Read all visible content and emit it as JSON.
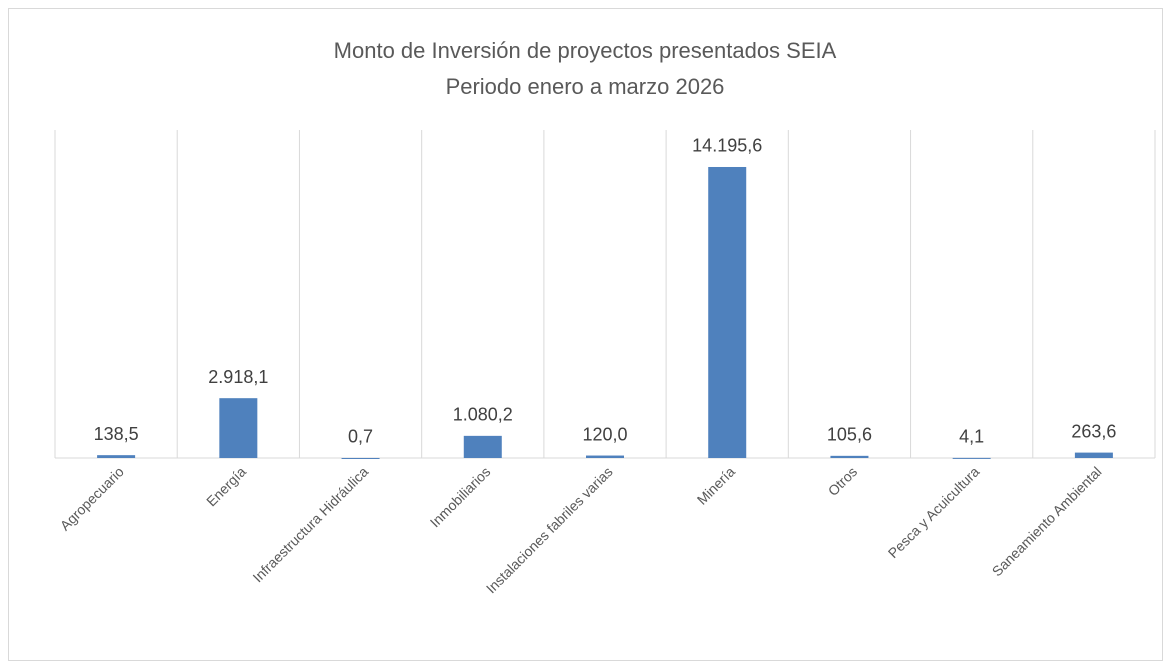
{
  "chart_data": {
    "type": "bar",
    "title": "Monto de Inversión de proyectos presentados SEIA",
    "subtitle": "Periodo enero a marzo 2026",
    "categories": [
      "Agropecuario",
      "Energía",
      "Infraestructura Hidráulica",
      "Inmobiliarios",
      "Instalaciones fabriles varias",
      "Minería",
      "Otros",
      "Pesca y Acuicultura",
      "Saneamiento Ambiental"
    ],
    "values": [
      138.5,
      2918.1,
      0.7,
      1080.2,
      120.0,
      14195.6,
      105.6,
      4.1,
      263.6
    ],
    "value_labels": [
      "138,5",
      "2.918,1",
      "0,7",
      "1.080,2",
      "120,0",
      "14.195,6",
      "105,6",
      "4,1",
      "263,6"
    ],
    "color": "#4f81bd",
    "ylim": [
      0,
      16000
    ],
    "grid": true
  }
}
